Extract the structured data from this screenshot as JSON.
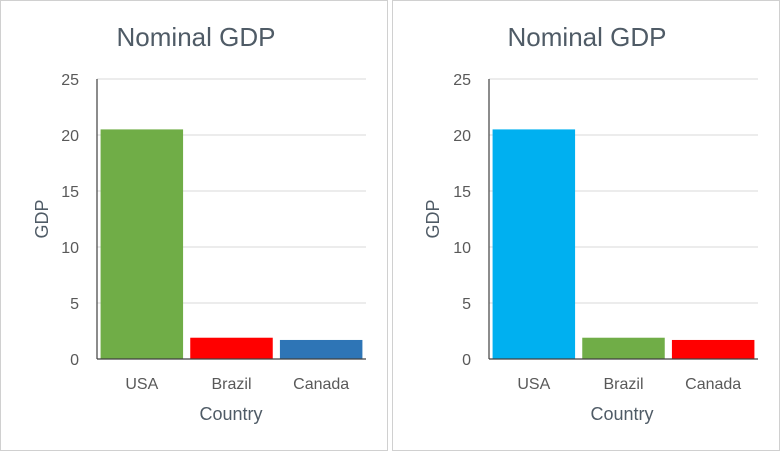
{
  "chart_data": [
    {
      "type": "bar",
      "title": "Nominal GDP",
      "xlabel": "Country",
      "ylabel": "GDP",
      "categories": [
        "USA",
        "Brazil",
        "Canada"
      ],
      "values": [
        20.5,
        1.9,
        1.7
      ],
      "colors": [
        "#70ad47",
        "#ff0000",
        "#2e75b6"
      ],
      "ylim": [
        0,
        25
      ],
      "yticks": [
        0,
        5,
        10,
        15,
        20,
        25
      ],
      "grid": true,
      "legend": "none"
    },
    {
      "type": "bar",
      "title": "Nominal GDP",
      "xlabel": "Country",
      "ylabel": "GDP",
      "categories": [
        "USA",
        "Brazil",
        "Canada"
      ],
      "values": [
        20.5,
        1.9,
        1.7
      ],
      "colors": [
        "#00b0f0",
        "#70ad47",
        "#ff0000"
      ],
      "ylim": [
        0,
        25
      ],
      "yticks": [
        0,
        5,
        10,
        15,
        20,
        25
      ],
      "grid": true,
      "legend": "none"
    }
  ]
}
